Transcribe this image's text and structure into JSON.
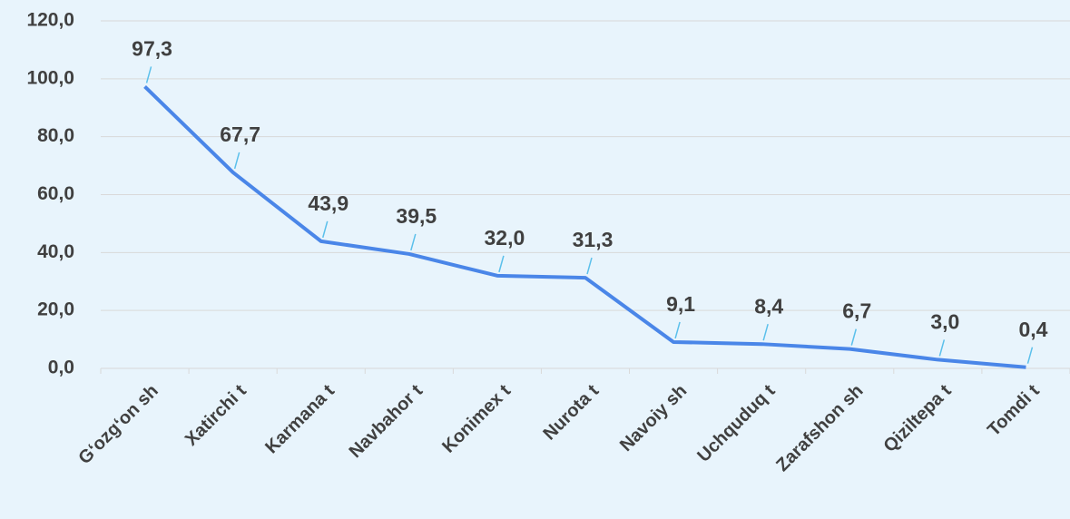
{
  "chart_data": {
    "type": "line",
    "categories": [
      "G‘ozg‘on sh",
      "Xatirchi t",
      "Karmana t",
      "Navbahor t",
      "Konimex t",
      "Nurota t",
      "Navoiy sh",
      "Uchquduq t",
      "Zarafshon sh",
      "Qiziltepa t",
      "Tomdi t"
    ],
    "series": [
      {
        "color": "#4a86e8",
        "values": [
          97.3,
          67.7,
          43.9,
          39.5,
          32.0,
          31.3,
          9.1,
          8.4,
          6.7,
          3.0,
          0.4
        ],
        "value_labels": [
          "97,3",
          "67,7",
          "43,9",
          "39,5",
          "32,0",
          "31,3",
          "9,1",
          "8,4",
          "6,7",
          "3,0",
          "0,4"
        ]
      }
    ],
    "ylim": [
      0,
      120
    ],
    "yticks": [
      {
        "value": 0,
        "label": "0,0"
      },
      {
        "value": 20,
        "label": "20,0"
      },
      {
        "value": 40,
        "label": "40,0"
      },
      {
        "value": 60,
        "label": "60,0"
      },
      {
        "value": 80,
        "label": "80,0"
      },
      {
        "value": 100,
        "label": "100,0"
      },
      {
        "value": 120,
        "label": "120,0"
      }
    ],
    "grid": true
  }
}
